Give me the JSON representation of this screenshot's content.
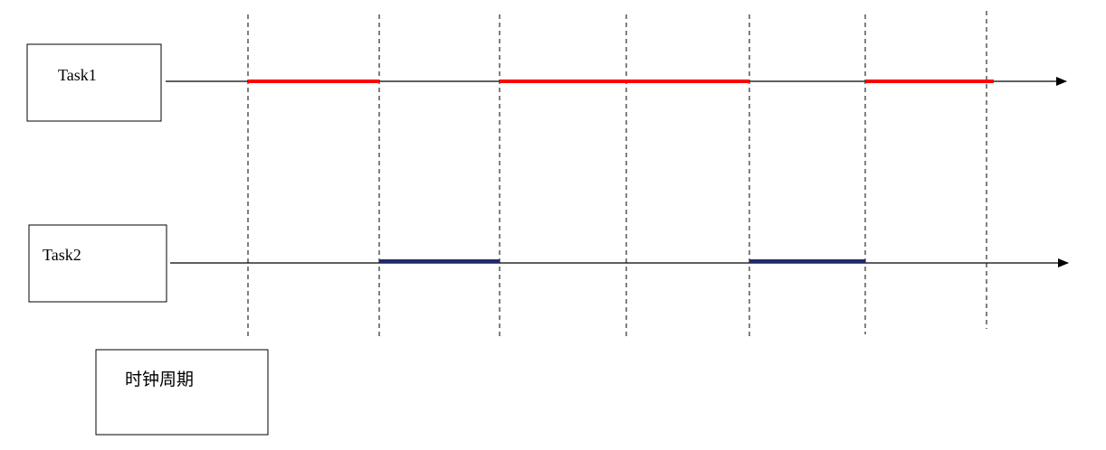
{
  "diagram": {
    "tasks": [
      {
        "label": "Task1",
        "color": "#ff0000",
        "active_segments": [
          [
            1,
            2
          ],
          [
            3,
            5
          ],
          [
            6,
            7
          ]
        ]
      },
      {
        "label": "Task2",
        "color": "#1f2a6b",
        "active_segments": [
          [
            2,
            3
          ],
          [
            5,
            6
          ]
        ]
      }
    ],
    "clock_label": "时钟周期",
    "clock_boundaries": 7,
    "line_color": "#000000"
  }
}
